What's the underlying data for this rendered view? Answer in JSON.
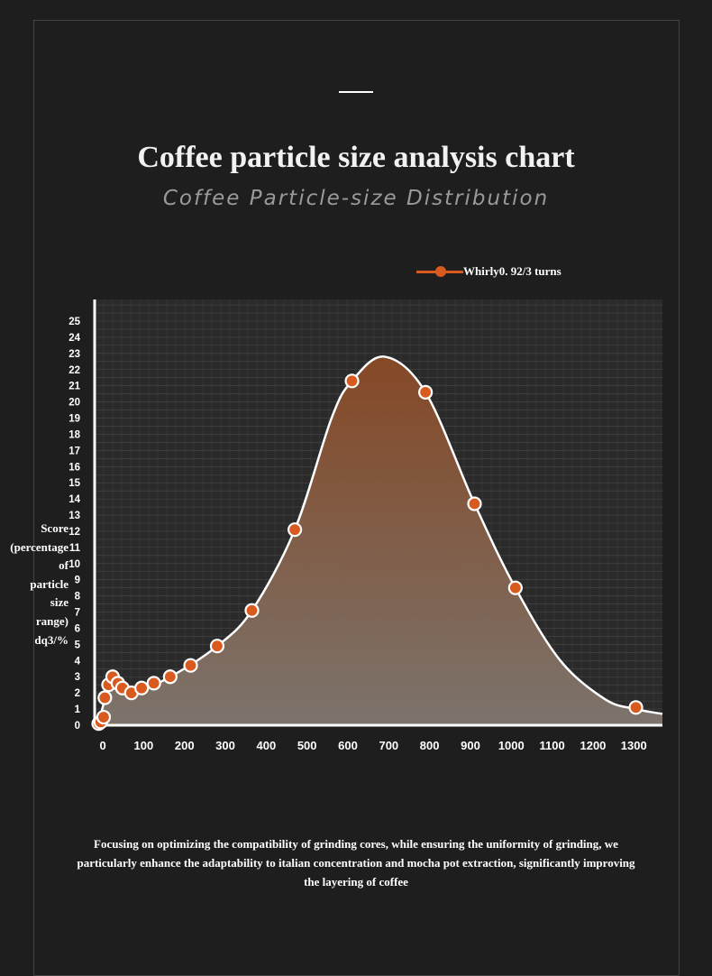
{
  "page": {
    "title": "Coffee particle size analysis chart",
    "subtitle": "Coffee Particle-size Distribution",
    "footer_text": "Focusing on optimizing the compatibility of grinding cores, while ensuring the uniformity of grinding, we particularly enhance the adaptability to italian concentration and mocha pot extraction, significantly improving the layering of coffee"
  },
  "colors": {
    "background": "#1e1e1e",
    "accent": "#d95a1f",
    "curve": "#ffffff",
    "fill_top": "#8a4a26",
    "fill_bottom": "#80776f"
  },
  "chart_data": {
    "type": "area",
    "title": "Coffee particle size analysis chart",
    "subtitle": "Coffee Particle-size Distribution",
    "xlabel": "",
    "ylabel": "Score (percentage of particle size range) dq3/%",
    "ylabel_lines": [
      "Score",
      "(percentage",
      "of",
      "particle",
      "size",
      "range)",
      "dq3/%"
    ],
    "xlim": [
      -20,
      1370
    ],
    "ylim": [
      0,
      25
    ],
    "x_ticks": [
      0,
      100,
      200,
      300,
      400,
      500,
      600,
      700,
      800,
      900,
      1000,
      1100,
      1200,
      1300
    ],
    "y_ticks": [
      0,
      1,
      2,
      3,
      4,
      5,
      6,
      7,
      8,
      9,
      10,
      11,
      12,
      13,
      14,
      15,
      16,
      17,
      18,
      19,
      20,
      21,
      22,
      23,
      24,
      25
    ],
    "legend": {
      "position": "top-right",
      "entries": [
        "Whirly0. 92/3 turns"
      ]
    },
    "grid": true,
    "series": [
      {
        "name": "Whirly0. 92/3 turns",
        "points": [
          [
            -10,
            0.1
          ],
          [
            -5,
            0.2
          ],
          [
            2,
            0.5
          ],
          [
            5,
            1.7
          ],
          [
            14,
            2.5
          ],
          [
            24,
            3.0
          ],
          [
            37,
            2.6
          ],
          [
            48,
            2.3
          ],
          [
            70,
            2.0
          ],
          [
            95,
            2.3
          ],
          [
            125,
            2.6
          ],
          [
            165,
            3.0
          ],
          [
            215,
            3.7
          ],
          [
            280,
            4.9
          ],
          [
            365,
            7.1
          ],
          [
            470,
            12.1
          ],
          [
            610,
            21.3
          ],
          [
            790,
            20.6
          ],
          [
            910,
            13.7
          ],
          [
            1010,
            8.5
          ],
          [
            1305,
            1.1
          ]
        ],
        "curve": [
          [
            -10,
            0.1
          ],
          [
            5,
            1.6
          ],
          [
            25,
            2.9
          ],
          [
            70,
            2.0
          ],
          [
            165,
            3.0
          ],
          [
            280,
            4.9
          ],
          [
            365,
            7.1
          ],
          [
            470,
            12.1
          ],
          [
            560,
            19.0
          ],
          [
            610,
            21.3
          ],
          [
            690,
            22.8
          ],
          [
            790,
            20.6
          ],
          [
            910,
            13.7
          ],
          [
            1010,
            8.5
          ],
          [
            1120,
            4.0
          ],
          [
            1230,
            1.6
          ],
          [
            1305,
            1.0
          ],
          [
            1370,
            0.7
          ]
        ]
      }
    ]
  }
}
